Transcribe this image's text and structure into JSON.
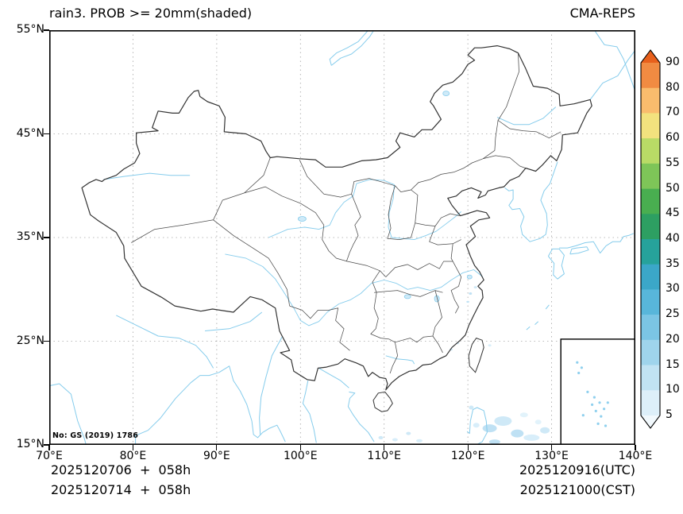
{
  "header": {
    "title": "rain3. PROB >= 20mm(shaded)",
    "model": "CMA-REPS"
  },
  "map": {
    "note": "No: GS (2019) 1786",
    "extent": {
      "lon_min": "70°E",
      "lon_max": "140°E",
      "lat_min": "15°N",
      "lat_max": "55°N"
    }
  },
  "axes": {
    "lat_ticks": [
      "55°N",
      "45°N",
      "35°N",
      "25°N",
      "15°N"
    ],
    "lon_ticks": [
      "70°E",
      "80°E",
      "90°E",
      "100°E",
      "110°E",
      "120°E",
      "130°E",
      "140°E"
    ]
  },
  "colorbar": {
    "tick_labels": [
      "90",
      "80",
      "70",
      "60",
      "55",
      "50",
      "45",
      "40",
      "35",
      "30",
      "25",
      "20",
      "15",
      "10",
      "5"
    ],
    "colors_top_to_bottom": [
      "#e8601c",
      "#f18b42",
      "#f9bc6d",
      "#f2e27e",
      "#b9db66",
      "#7ec558",
      "#49ae50",
      "#2d9f62",
      "#26a29b",
      "#3ba7c8",
      "#58b6da",
      "#7bc5e4",
      "#9fd4ec",
      "#c1e3f3",
      "#ddeff9",
      "#f2f9fd"
    ]
  },
  "footer": {
    "init_utc": "2025120706  +  058h",
    "init_cst": "2025120714  +  058h",
    "valid_utc": "2025120916(UTC)",
    "valid_cst": "2025121000(CST)"
  },
  "map_colors": {
    "country_border": "#333333",
    "province_border": "#4a4a4a",
    "water": "#85ccec",
    "grid": "#9a9a9a",
    "shade_light": "#cfe9f7"
  }
}
